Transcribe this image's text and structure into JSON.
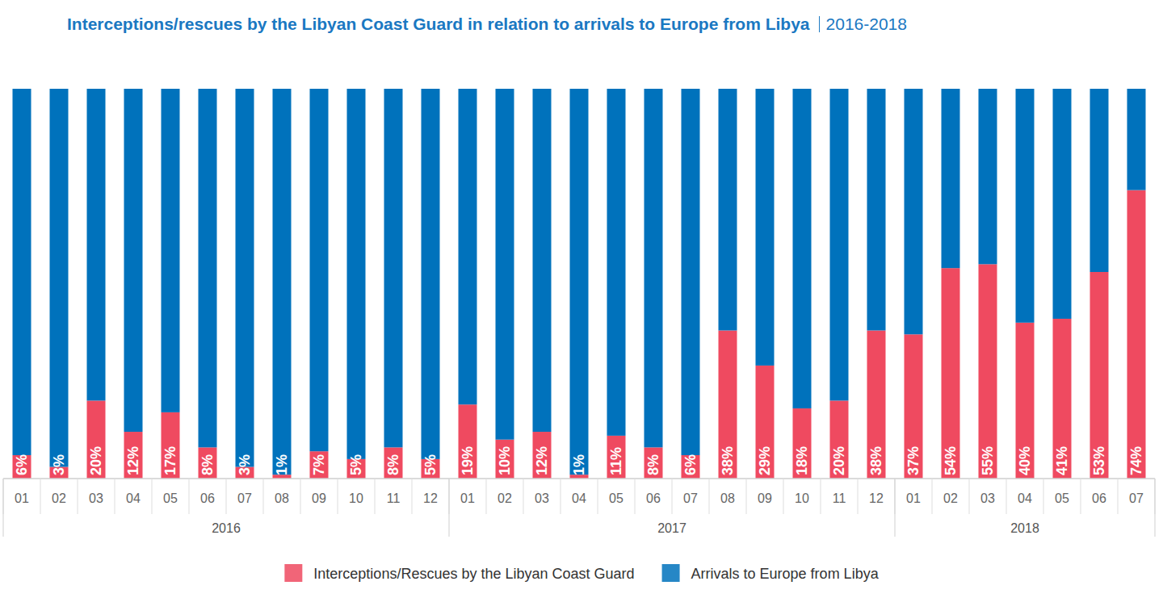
{
  "chart_data": {
    "type": "bar",
    "stacked": true,
    "title": "Interceptions/rescues by the Libyan Coast Guard in relation to arrivals to Europe from Libya",
    "subtitle": "2016-2018",
    "categories": [
      "01",
      "02",
      "03",
      "04",
      "05",
      "06",
      "07",
      "08",
      "09",
      "10",
      "11",
      "12",
      "01",
      "02",
      "03",
      "04",
      "05",
      "06",
      "07",
      "08",
      "09",
      "10",
      "11",
      "12",
      "01",
      "02",
      "03",
      "04",
      "05",
      "06",
      "07"
    ],
    "groups": [
      {
        "label": "2016",
        "size": 12
      },
      {
        "label": "2017",
        "size": 12
      },
      {
        "label": "2018",
        "size": 7
      }
    ],
    "ylim": [
      0,
      100
    ],
    "tick_labels": "x",
    "grid": false,
    "legend": "bottom",
    "series": [
      {
        "name": "Interceptions/Rescues by the Libyan Coast Guard",
        "color": "#ef4a60",
        "data_labels": true,
        "values": [
          6,
          3,
          20,
          12,
          17,
          8,
          3,
          1,
          7,
          5,
          8,
          5,
          19,
          10,
          12,
          1,
          11,
          8,
          6,
          38,
          29,
          18,
          20,
          38,
          37,
          54,
          55,
          40,
          41,
          53,
          74
        ],
        "value_labels": [
          "6%",
          "3%",
          "20%",
          "12%",
          "17%",
          "8%",
          "3%",
          "1%",
          "7%",
          "5%",
          "8%",
          "5%",
          "19%",
          "10%",
          "12%",
          "1%",
          "11%",
          "8%",
          "6%",
          "38%",
          "29%",
          "18%",
          "20%",
          "38%",
          "37%",
          "54%",
          "55%",
          "40%",
          "41%",
          "53%",
          "74%"
        ]
      },
      {
        "name": "Arrivals to Europe from Libya",
        "color": "#0072bc",
        "data_labels": false,
        "values": [
          94,
          97,
          80,
          88,
          83,
          92,
          97,
          99,
          93,
          95,
          92,
          95,
          81,
          90,
          88,
          99,
          89,
          92,
          94,
          62,
          71,
          82,
          80,
          62,
          63,
          46,
          45,
          60,
          59,
          47,
          26
        ]
      }
    ]
  }
}
